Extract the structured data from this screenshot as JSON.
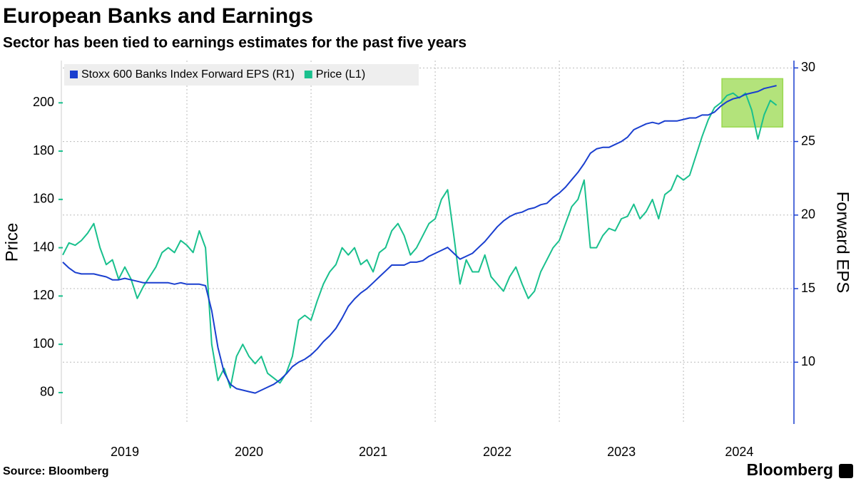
{
  "chart_data": {
    "type": "line",
    "title": "European Banks and Earnings",
    "subtitle": "Sector has been tied to earnings estimates for the past five years",
    "ylabel": "Price",
    "y2label": "Forward EPS",
    "source": "Source: Bloomberg",
    "brand": "Bloomberg",
    "x": [
      2019.0,
      2019.05,
      2019.1,
      2019.15,
      2019.2,
      2019.25,
      2019.3,
      2019.35,
      2019.4,
      2019.45,
      2019.5,
      2019.55,
      2019.6,
      2019.65,
      2019.7,
      2019.75,
      2019.8,
      2019.85,
      2019.9,
      2019.95,
      2020.0,
      2020.05,
      2020.1,
      2020.15,
      2020.2,
      2020.25,
      2020.3,
      2020.35,
      2020.4,
      2020.45,
      2020.5,
      2020.55,
      2020.6,
      2020.65,
      2020.7,
      2020.75,
      2020.8,
      2020.85,
      2020.9,
      2020.95,
      2021.0,
      2021.05,
      2021.1,
      2021.15,
      2021.2,
      2021.25,
      2021.3,
      2021.35,
      2021.4,
      2021.45,
      2021.5,
      2021.55,
      2021.6,
      2021.65,
      2021.7,
      2021.75,
      2021.8,
      2021.85,
      2021.9,
      2021.95,
      2022.0,
      2022.05,
      2022.1,
      2022.15,
      2022.2,
      2022.25,
      2022.3,
      2022.35,
      2022.4,
      2022.45,
      2022.5,
      2022.55,
      2022.6,
      2022.65,
      2022.7,
      2022.75,
      2022.8,
      2022.85,
      2022.9,
      2022.95,
      2023.0,
      2023.05,
      2023.1,
      2023.15,
      2023.2,
      2023.25,
      2023.3,
      2023.35,
      2023.4,
      2023.45,
      2023.5,
      2023.55,
      2023.6,
      2023.65,
      2023.7,
      2023.75,
      2023.8,
      2023.85,
      2023.9,
      2023.95,
      2024.0,
      2024.05,
      2024.1,
      2024.15,
      2024.2,
      2024.25,
      2024.3,
      2024.35,
      2024.4,
      2024.45,
      2024.5,
      2024.55,
      2024.6,
      2024.65,
      2024.7,
      2024.75
    ],
    "series": [
      {
        "name": "Stoxx 600 Banks Index Forward EPS (R1)",
        "color": "#1a3fcf",
        "axis": "y2",
        "values": [
          16.8,
          16.4,
          16.1,
          16.0,
          16.0,
          16.0,
          15.9,
          15.8,
          15.6,
          15.6,
          15.7,
          15.6,
          15.5,
          15.4,
          15.4,
          15.4,
          15.4,
          15.4,
          15.3,
          15.4,
          15.3,
          15.3,
          15.3,
          15.2,
          13.5,
          11.0,
          9.3,
          8.5,
          8.2,
          8.1,
          8.0,
          7.9,
          8.1,
          8.3,
          8.5,
          8.8,
          9.2,
          9.7,
          10.0,
          10.2,
          10.5,
          10.9,
          11.4,
          11.8,
          12.3,
          13.0,
          13.8,
          14.3,
          14.7,
          15.0,
          15.4,
          15.8,
          16.2,
          16.6,
          16.6,
          16.6,
          16.8,
          16.8,
          16.9,
          17.2,
          17.4,
          17.6,
          17.8,
          17.4,
          17.0,
          17.2,
          17.4,
          17.8,
          18.2,
          18.7,
          19.2,
          19.6,
          19.9,
          20.1,
          20.2,
          20.4,
          20.5,
          20.7,
          20.8,
          21.2,
          21.5,
          21.9,
          22.4,
          22.9,
          23.5,
          24.2,
          24.5,
          24.6,
          24.6,
          24.8,
          25.0,
          25.3,
          25.8,
          26.0,
          26.2,
          26.3,
          26.2,
          26.4,
          26.4,
          26.4,
          26.5,
          26.6,
          26.6,
          26.8,
          26.8,
          27.0,
          27.4,
          27.7,
          27.9,
          28.0,
          28.2,
          28.3,
          28.4,
          28.6,
          28.7,
          28.8
        ]
      },
      {
        "name": "Price (L1)",
        "color": "#19c08d",
        "axis": "y",
        "values": [
          137,
          142,
          141,
          143,
          146,
          150,
          140,
          133,
          135,
          127,
          132,
          127,
          119,
          124,
          128,
          132,
          138,
          140,
          138,
          143,
          141,
          138,
          147,
          140,
          100,
          85,
          90,
          82,
          95,
          100,
          95,
          92,
          95,
          88,
          86,
          84,
          88,
          95,
          110,
          112,
          110,
          118,
          125,
          130,
          133,
          140,
          137,
          140,
          133,
          135,
          130,
          138,
          140,
          147,
          150,
          145,
          137,
          140,
          145,
          150,
          152,
          160,
          164,
          145,
          125,
          135,
          130,
          130,
          137,
          128,
          125,
          122,
          128,
          132,
          125,
          119,
          122,
          130,
          135,
          140,
          143,
          150,
          157,
          160,
          168,
          140,
          140,
          145,
          148,
          147,
          152,
          153,
          158,
          152,
          155,
          160,
          152,
          162,
          164,
          170,
          168,
          170,
          178,
          186,
          193,
          198,
          200,
          203,
          204,
          202,
          204,
          197,
          185,
          195,
          201,
          199
        ]
      }
    ],
    "xlim": [
      2019.0,
      2024.89
    ],
    "xticks": [
      {
        "value": 2019.5,
        "label": "2019"
      },
      {
        "value": 2020.5,
        "label": "2020"
      },
      {
        "value": 2021.5,
        "label": "2021"
      },
      {
        "value": 2022.5,
        "label": "2022"
      },
      {
        "value": 2023.5,
        "label": "2023"
      },
      {
        "value": 2024.45,
        "label": "2024"
      }
    ],
    "xgrid": [
      2020,
      2021,
      2022,
      2023,
      2024
    ],
    "ylim": [
      67,
      217.5
    ],
    "yticks": [
      80,
      100,
      120,
      140,
      160,
      180,
      200
    ],
    "y2lim": [
      5.8,
      30.5
    ],
    "y2ticks": [
      10,
      15,
      20,
      25,
      30
    ],
    "grid": "y2",
    "legend": "top-left",
    "highlight": {
      "xlim": [
        2024.31,
        2024.8
      ],
      "ylim": [
        190,
        210
      ],
      "color": "#9ad94f"
    }
  }
}
